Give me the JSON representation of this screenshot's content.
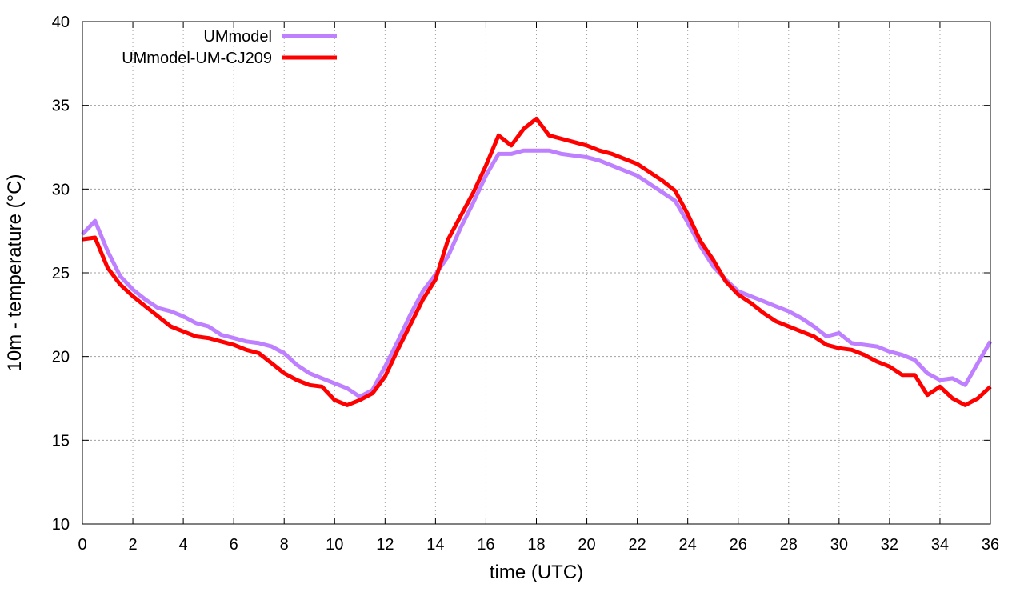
{
  "chart_data": {
    "type": "line",
    "title": "",
    "xlabel": "time (UTC)",
    "ylabel": "10m - temperature (°C)",
    "xlim": [
      0,
      36
    ],
    "ylim": [
      10,
      40
    ],
    "xticks": [
      0,
      2,
      4,
      6,
      8,
      10,
      12,
      14,
      16,
      18,
      20,
      22,
      24,
      26,
      28,
      30,
      32,
      34,
      36
    ],
    "yticks": [
      10,
      15,
      20,
      25,
      30,
      35,
      40
    ],
    "grid": true,
    "legend_position": "top-left",
    "x": [
      0,
      0.5,
      1,
      1.5,
      2,
      2.5,
      3,
      3.5,
      4,
      4.5,
      5,
      5.5,
      6,
      6.5,
      7,
      7.5,
      8,
      8.5,
      9,
      9.5,
      10,
      10.5,
      11,
      11.5,
      12,
      12.5,
      13,
      13.5,
      14,
      14.5,
      15,
      15.5,
      16,
      16.5,
      17,
      17.5,
      18,
      18.5,
      19,
      19.5,
      20,
      20.5,
      21,
      21.5,
      22,
      22.5,
      23,
      23.5,
      24,
      24.5,
      25,
      25.5,
      26,
      26.5,
      27,
      27.5,
      28,
      28.5,
      29,
      29.5,
      30,
      30.5,
      31,
      31.5,
      32,
      32.5,
      33,
      33.5,
      34,
      34.5,
      35,
      35.5,
      36
    ],
    "series": [
      {
        "name": "UMmodel",
        "color": "#bf80ff",
        "values": [
          27.3,
          28.1,
          26.3,
          24.8,
          24.0,
          23.4,
          22.9,
          22.7,
          22.4,
          22.0,
          21.8,
          21.3,
          21.1,
          20.9,
          20.8,
          20.6,
          20.2,
          19.5,
          19.0,
          18.7,
          18.4,
          18.1,
          17.6,
          18.0,
          19.4,
          20.9,
          22.5,
          23.9,
          24.9,
          26.0,
          27.7,
          29.2,
          30.8,
          32.1,
          32.1,
          32.3,
          32.3,
          32.3,
          32.1,
          32.0,
          31.9,
          31.7,
          31.4,
          31.1,
          30.8,
          30.3,
          29.8,
          29.3,
          28.0,
          26.6,
          25.4,
          24.6,
          23.9,
          23.6,
          23.3,
          23.0,
          22.7,
          22.3,
          21.8,
          21.2,
          21.4,
          20.8,
          20.7,
          20.6,
          20.3,
          20.1,
          19.8,
          19.0,
          18.6,
          18.7,
          18.3,
          19.6,
          20.9
        ]
      },
      {
        "name": "UMmodel-UM-CJ209",
        "color": "#ff0000",
        "values": [
          27.0,
          27.1,
          25.3,
          24.3,
          23.6,
          23.0,
          22.4,
          21.8,
          21.5,
          21.2,
          21.1,
          20.9,
          20.7,
          20.4,
          20.2,
          19.6,
          19.0,
          18.6,
          18.3,
          18.2,
          17.4,
          17.1,
          17.4,
          17.8,
          18.8,
          20.4,
          21.9,
          23.4,
          24.6,
          27.0,
          28.4,
          29.8,
          31.4,
          33.2,
          32.6,
          33.6,
          34.2,
          33.2,
          33.0,
          32.8,
          32.6,
          32.3,
          32.1,
          31.8,
          31.5,
          31.0,
          30.5,
          29.9,
          28.5,
          26.9,
          25.8,
          24.5,
          23.7,
          23.2,
          22.6,
          22.1,
          21.8,
          21.5,
          21.2,
          20.7,
          20.5,
          20.4,
          20.1,
          19.7,
          19.4,
          18.9,
          18.9,
          17.7,
          18.2,
          17.5,
          17.1,
          17.5,
          18.2
        ]
      }
    ]
  }
}
